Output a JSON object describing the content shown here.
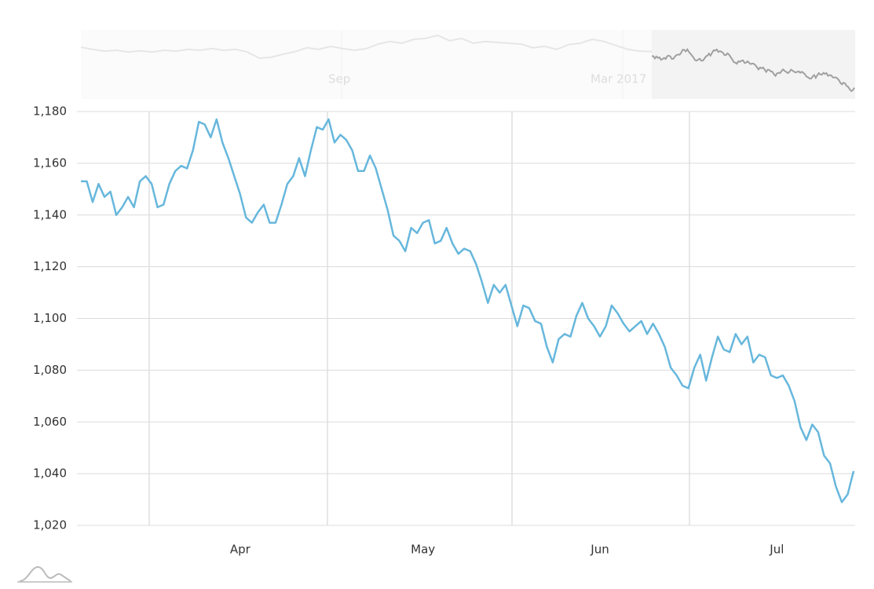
{
  "chart_data": {
    "type": "line",
    "categories": [
      null,
      null,
      null,
      null,
      null,
      null,
      null,
      null,
      null,
      null,
      null,
      null,
      null,
      null,
      null,
      null,
      null,
      null,
      null,
      null,
      null,
      null,
      null,
      null,
      null,
      null,
      null,
      "Apr",
      null,
      null,
      null,
      null,
      null,
      null,
      null,
      null,
      null,
      null,
      null,
      null,
      null,
      null,
      null,
      null,
      null,
      null,
      null,
      null,
      null,
      null,
      null,
      null,
      null,
      null,
      null,
      null,
      null,
      null,
      "May",
      null,
      null,
      null,
      null,
      null,
      null,
      null,
      null,
      null,
      null,
      null,
      null,
      null,
      null,
      null,
      null,
      null,
      null,
      null,
      null,
      null,
      null,
      null,
      null,
      null,
      null,
      null,
      null,
      null,
      "Jun",
      null,
      null,
      null,
      null,
      null,
      null,
      null,
      null,
      null,
      null,
      null,
      null,
      null,
      null,
      null,
      null,
      null,
      null,
      null,
      null,
      null,
      null,
      null,
      null,
      null,
      null,
      null,
      null,
      null,
      "Jul",
      null,
      null,
      null,
      null,
      null,
      null,
      null,
      null,
      null,
      null,
      null,
      null,
      null
    ],
    "series": [
      {
        "color": "#67b7dc",
        "values": [
          1153,
          1153,
          1145,
          1152,
          1147,
          1149,
          1140,
          1143,
          1147,
          1143,
          1153,
          1155,
          1152,
          1143,
          1144,
          1152,
          1157,
          1159,
          1158,
          1165,
          1176,
          1175,
          1170,
          1177,
          1168,
          1162,
          1155,
          1148,
          1139,
          1137,
          1141,
          1144,
          1137,
          1137,
          1144,
          1152,
          1155,
          1162,
          1155,
          1165,
          1174,
          1173,
          1177,
          1168,
          1171,
          1169,
          1165,
          1157,
          1157,
          1163,
          1158,
          1150,
          1142,
          1132,
          1130,
          1126,
          1135,
          1133,
          1137,
          1138,
          1129,
          1130,
          1135,
          1129,
          1125,
          1127,
          1126,
          1121,
          1114,
          1106,
          1113,
          1110,
          1113,
          1105,
          1097,
          1105,
          1104,
          1099,
          1098,
          1089,
          1083,
          1092,
          1094,
          1093,
          1101,
          1106,
          1100,
          1097,
          1093,
          1097,
          1105,
          1102,
          1098,
          1095,
          1097,
          1099,
          1094,
          1098,
          1094,
          1089,
          1081,
          1078,
          1074,
          1073,
          1081,
          1086,
          1076,
          1085,
          1093,
          1088,
          1087,
          1094,
          1090,
          1093,
          1083,
          1086,
          1085,
          1078,
          1077,
          1078,
          1074,
          1068,
          1058,
          1053,
          1059,
          1056,
          1047,
          1044,
          1035,
          1029,
          1032,
          1041
        ]
      }
    ],
    "ylim": [
      1020,
      1180
    ],
    "yticks": [
      {
        "value": 1020,
        "label": "1,020"
      },
      {
        "value": 1040,
        "label": "1,040"
      },
      {
        "value": 1060,
        "label": "1,060"
      },
      {
        "value": 1080,
        "label": "1,080"
      },
      {
        "value": 1100,
        "label": "1,100"
      },
      {
        "value": 1120,
        "label": "1,120"
      },
      {
        "value": 1140,
        "label": "1,140"
      },
      {
        "value": 1160,
        "label": "1,160"
      },
      {
        "value": 1180,
        "label": "1,180"
      }
    ],
    "grid": true,
    "navigator": {
      "labels": [
        "Sep",
        "Mar 2017"
      ],
      "color": "#e6e6e6",
      "selected_color": "#a0a0a0",
      "values": [
        1185,
        1177,
        1171,
        1174,
        1168,
        1172,
        1168,
        1174,
        1171,
        1177,
        1174,
        1180,
        1174,
        1177,
        1168,
        1146,
        1149,
        1160,
        1169,
        1183,
        1177,
        1188,
        1180,
        1174,
        1180,
        1196,
        1205,
        1199,
        1213,
        1216,
        1227,
        1208,
        1216,
        1199,
        1205,
        1202,
        1199,
        1196,
        1183,
        1188,
        1177,
        1194,
        1199,
        1213,
        1205,
        1191,
        1177,
        1171,
        1169
      ]
    }
  }
}
